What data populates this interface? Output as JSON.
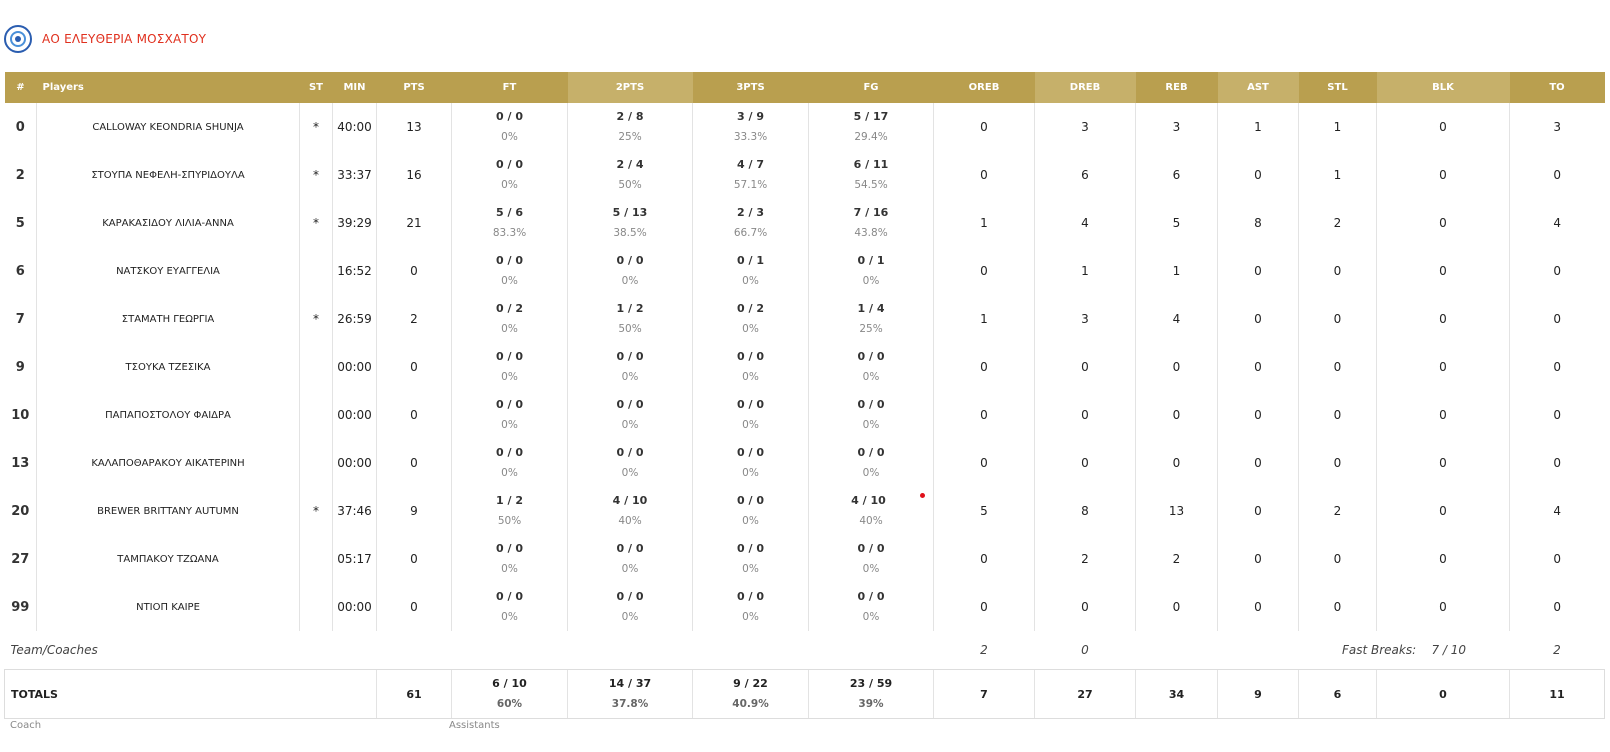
{
  "team": {
    "name": "ΑΟ ΕΛΕΥΘΕΡΙΑ ΜΟΣΧΑΤΟΥ"
  },
  "columns": {
    "num": "#",
    "players": "Players",
    "st": "ST",
    "min": "MIN",
    "pts": "PTS",
    "ft": "FT",
    "pts2": "2PTS",
    "pts3": "3PTS",
    "fg": "FG",
    "oreb": "OREB",
    "dreb": "DREB",
    "reb": "REB",
    "ast": "AST",
    "stl": "STL",
    "blk": "BLK",
    "to": "TO"
  },
  "players": [
    {
      "num": "0",
      "name": "CALLOWAY KEONDRIA SHUNJA",
      "st": "*",
      "min": "40:00",
      "pts": "13",
      "ft": "0 / 0",
      "ft_pct": "0%",
      "p2": "2 / 8",
      "p2_pct": "25%",
      "p3": "3 / 9",
      "p3_pct": "33.3%",
      "fg": "5 / 17",
      "fg_pct": "29.4%",
      "oreb": "0",
      "dreb": "3",
      "reb": "3",
      "ast": "1",
      "stl": "1",
      "blk": "0",
      "to": "3"
    },
    {
      "num": "2",
      "name": "ΣΤΟΥΠΑ ΝΕΦΕΛΗ-ΣΠΥΡΙΔΟΥΛΑ",
      "st": "*",
      "min": "33:37",
      "pts": "16",
      "ft": "0 / 0",
      "ft_pct": "0%",
      "p2": "2 / 4",
      "p2_pct": "50%",
      "p3": "4 / 7",
      "p3_pct": "57.1%",
      "fg": "6 / 11",
      "fg_pct": "54.5%",
      "oreb": "0",
      "dreb": "6",
      "reb": "6",
      "ast": "0",
      "stl": "1",
      "blk": "0",
      "to": "0"
    },
    {
      "num": "5",
      "name": "ΚΑΡΑΚΑΣΙΔΟΥ ΛΙΛΙΑ-ΑΝΝΑ",
      "st": "*",
      "min": "39:29",
      "pts": "21",
      "ft": "5 / 6",
      "ft_pct": "83.3%",
      "p2": "5 / 13",
      "p2_pct": "38.5%",
      "p3": "2 / 3",
      "p3_pct": "66.7%",
      "fg": "7 / 16",
      "fg_pct": "43.8%",
      "oreb": "1",
      "dreb": "4",
      "reb": "5",
      "ast": "8",
      "stl": "2",
      "blk": "0",
      "to": "4"
    },
    {
      "num": "6",
      "name": "ΝΑΤΣΚΟΥ ΕΥΑΓΓΕΛΙΑ",
      "st": "",
      "min": "16:52",
      "pts": "0",
      "ft": "0 / 0",
      "ft_pct": "0%",
      "p2": "0 / 0",
      "p2_pct": "0%",
      "p3": "0 / 1",
      "p3_pct": "0%",
      "fg": "0 / 1",
      "fg_pct": "0%",
      "oreb": "0",
      "dreb": "1",
      "reb": "1",
      "ast": "0",
      "stl": "0",
      "blk": "0",
      "to": "0"
    },
    {
      "num": "7",
      "name": "ΣΤΑΜΑΤΗ ΓΕΩΡΓΙΑ",
      "st": "*",
      "min": "26:59",
      "pts": "2",
      "ft": "0 / 2",
      "ft_pct": "0%",
      "p2": "1 / 2",
      "p2_pct": "50%",
      "p3": "0 / 2",
      "p3_pct": "0%",
      "fg": "1 / 4",
      "fg_pct": "25%",
      "oreb": "1",
      "dreb": "3",
      "reb": "4",
      "ast": "0",
      "stl": "0",
      "blk": "0",
      "to": "0"
    },
    {
      "num": "9",
      "name": "ΤΣΟΥΚΑ ΤΖΕΣΙΚΑ",
      "st": "",
      "min": "00:00",
      "pts": "0",
      "ft": "0 / 0",
      "ft_pct": "0%",
      "p2": "0 / 0",
      "p2_pct": "0%",
      "p3": "0 / 0",
      "p3_pct": "0%",
      "fg": "0 / 0",
      "fg_pct": "0%",
      "oreb": "0",
      "dreb": "0",
      "reb": "0",
      "ast": "0",
      "stl": "0",
      "blk": "0",
      "to": "0"
    },
    {
      "num": "10",
      "name": "ΠΑΠΑΠΟΣΤΟΛΟΥ ΦΑΙΔΡΑ",
      "st": "",
      "min": "00:00",
      "pts": "0",
      "ft": "0 / 0",
      "ft_pct": "0%",
      "p2": "0 / 0",
      "p2_pct": "0%",
      "p3": "0 / 0",
      "p3_pct": "0%",
      "fg": "0 / 0",
      "fg_pct": "0%",
      "oreb": "0",
      "dreb": "0",
      "reb": "0",
      "ast": "0",
      "stl": "0",
      "blk": "0",
      "to": "0"
    },
    {
      "num": "13",
      "name": "ΚΑΛΑΠΟΘΑΡΑΚΟΥ ΑΙΚΑΤΕΡΙΝΗ",
      "st": "",
      "min": "00:00",
      "pts": "0",
      "ft": "0 / 0",
      "ft_pct": "0%",
      "p2": "0 / 0",
      "p2_pct": "0%",
      "p3": "0 / 0",
      "p3_pct": "0%",
      "fg": "0 / 0",
      "fg_pct": "0%",
      "oreb": "0",
      "dreb": "0",
      "reb": "0",
      "ast": "0",
      "stl": "0",
      "blk": "0",
      "to": "0"
    },
    {
      "num": "20",
      "name": "BREWER BRITTANY AUTUMN",
      "st": "*",
      "min": "37:46",
      "pts": "9",
      "ft": "1 / 2",
      "ft_pct": "50%",
      "p2": "4 / 10",
      "p2_pct": "40%",
      "p3": "0 / 0",
      "p3_pct": "0%",
      "fg": "4 / 10",
      "fg_pct": "40%",
      "oreb": "5",
      "dreb": "8",
      "reb": "13",
      "ast": "0",
      "stl": "2",
      "blk": "0",
      "to": "4"
    },
    {
      "num": "27",
      "name": "ΤΑΜΠΑΚΟΥ ΤΖΩΑΝΑ",
      "st": "",
      "min": "05:17",
      "pts": "0",
      "ft": "0 / 0",
      "ft_pct": "0%",
      "p2": "0 / 0",
      "p2_pct": "0%",
      "p3": "0 / 0",
      "p3_pct": "0%",
      "fg": "0 / 0",
      "fg_pct": "0%",
      "oreb": "0",
      "dreb": "2",
      "reb": "2",
      "ast": "0",
      "stl": "0",
      "blk": "0",
      "to": "0"
    },
    {
      "num": "99",
      "name": "ΝΤΙΟΠ ΚΑΙΡΕ",
      "st": "",
      "min": "00:00",
      "pts": "0",
      "ft": "0 / 0",
      "ft_pct": "0%",
      "p2": "0 / 0",
      "p2_pct": "0%",
      "p3": "0 / 0",
      "p3_pct": "0%",
      "fg": "0 / 0",
      "fg_pct": "0%",
      "oreb": "0",
      "dreb": "0",
      "reb": "0",
      "ast": "0",
      "stl": "0",
      "blk": "0",
      "to": "0"
    }
  ],
  "team_coaches": {
    "label": "Team/Coaches",
    "oreb": "2",
    "dreb": "0",
    "fast_breaks_label": "Fast Breaks:",
    "fast_breaks_value": "7 / 10",
    "to": "2"
  },
  "totals": {
    "label": "TOTALS",
    "pts": "61",
    "ft": "6 / 10",
    "ft_pct": "60%",
    "p2": "14 / 37",
    "p2_pct": "37.8%",
    "p3": "9 / 22",
    "p3_pct": "40.9%",
    "fg": "23 / 59",
    "fg_pct": "39%",
    "oreb": "7",
    "dreb": "27",
    "reb": "34",
    "ast": "9",
    "stl": "6",
    "blk": "0",
    "to": "11"
  },
  "footer": {
    "coach_label": "Coach",
    "assistants_label": "Assistants"
  },
  "colors": {
    "header_dark": "#b99f4f",
    "header_light": "#c6b06a",
    "team_name": "#e0301e",
    "marker": "#e0101a"
  }
}
